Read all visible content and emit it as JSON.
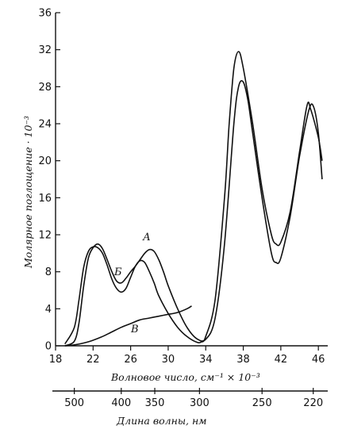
{
  "chart_data": {
    "type": "line",
    "ylabel": "Молярное поглощение · 10⁻³",
    "xlabel": "Волновое число,  см⁻¹ × 10⁻³",
    "x2label": "Длина волны, нм",
    "xlim": [
      18,
      47
    ],
    "ylim": [
      0,
      36
    ],
    "xticks": [
      18,
      22,
      26,
      30,
      34,
      38,
      42,
      46
    ],
    "yticks": [
      0,
      4,
      8,
      12,
      16,
      20,
      24,
      28,
      32,
      36
    ],
    "x2ticks": [
      {
        "label": "500",
        "value": 500
      },
      {
        "label": "400",
        "value": 400
      },
      {
        "label": "350",
        "value": 350
      },
      {
        "label": "300",
        "value": 300
      },
      {
        "label": "250",
        "value": 250
      },
      {
        "label": "220",
        "value": 220
      }
    ],
    "series": [
      {
        "name": "А",
        "x": [
          19.0,
          20.0,
          20.5,
          21.0,
          21.5,
          22.0,
          22.5,
          23.0,
          23.5,
          24.0,
          24.5,
          25.0,
          25.5,
          26.0,
          26.5,
          27.0,
          27.5,
          28.0,
          28.5,
          29.0,
          29.5,
          30.0,
          31.0,
          32.0,
          33.0,
          34.0,
          35.0,
          36.0,
          37.0,
          37.5,
          38.0,
          38.5,
          39.0,
          40.0,
          41.0,
          41.5,
          42.0,
          43.0,
          44.0,
          45.0,
          45.5,
          46.0,
          46.4
        ],
        "y": [
          0.0,
          0.5,
          2.5,
          6.5,
          9.5,
          10.6,
          11.0,
          10.5,
          9.3,
          8.0,
          7.0,
          6.8,
          7.3,
          8.0,
          8.6,
          9.3,
          10.0,
          10.4,
          10.2,
          9.3,
          8.0,
          6.5,
          4.0,
          2.0,
          0.8,
          0.7,
          3.0,
          11.0,
          24.0,
          28.0,
          28.5,
          26.5,
          23.0,
          16.0,
          10.0,
          9.0,
          9.5,
          14.0,
          20.5,
          25.5,
          25.8,
          23.0,
          18.0
        ]
      },
      {
        "name": "Б",
        "x": [
          19.0,
          20.0,
          20.5,
          21.0,
          21.5,
          22.0,
          22.5,
          23.0,
          23.5,
          24.0,
          24.5,
          25.0,
          25.5,
          26.0,
          26.5,
          27.0,
          27.5,
          28.0,
          28.5,
          29.0,
          30.0,
          31.0,
          32.0,
          33.0,
          33.5,
          34.0,
          35.0,
          36.0,
          36.5,
          37.0,
          37.5,
          38.0,
          39.0,
          40.0,
          41.0,
          41.5,
          42.0,
          43.0,
          44.0,
          44.8,
          45.2,
          46.0,
          46.4
        ],
        "y": [
          0.2,
          2.0,
          5.0,
          8.5,
          10.2,
          10.7,
          10.6,
          10.0,
          8.7,
          7.2,
          6.2,
          5.8,
          6.2,
          7.4,
          8.6,
          9.2,
          9.0,
          8.0,
          6.8,
          5.4,
          3.5,
          2.0,
          1.0,
          0.4,
          0.4,
          1.0,
          5.0,
          16.0,
          24.0,
          30.0,
          31.8,
          30.0,
          24.0,
          17.0,
          12.0,
          11.0,
          11.2,
          14.5,
          21.0,
          26.0,
          25.5,
          22.5,
          20.0
        ]
      },
      {
        "name": "В",
        "x": [
          19.0,
          20.0,
          21.0,
          22.0,
          23.0,
          24.0,
          25.0,
          26.0,
          27.0,
          28.0,
          29.0,
          30.0,
          31.0,
          32.0,
          32.5
        ],
        "y": [
          0.0,
          0.1,
          0.3,
          0.6,
          1.0,
          1.5,
          2.0,
          2.4,
          2.8,
          3.0,
          3.2,
          3.4,
          3.6,
          4.0,
          4.3
        ]
      }
    ]
  }
}
